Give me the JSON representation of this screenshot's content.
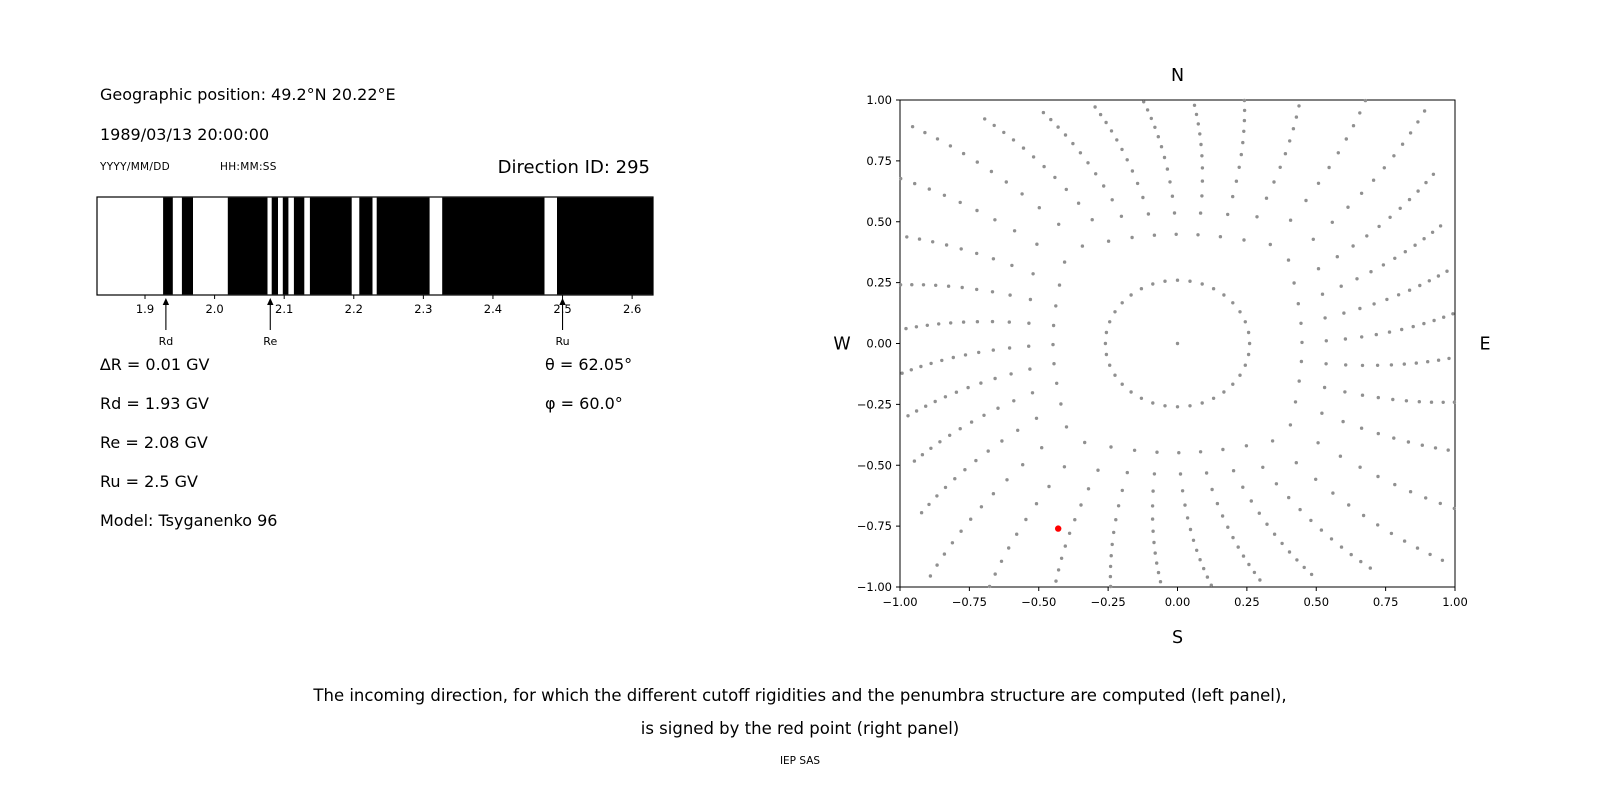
{
  "header": {
    "geo_position": "Geographic position: 49.2°N 20.22°E",
    "datetime": "1989/03/13 20:00:00",
    "date_format": "YYYY/MM/DD",
    "time_format": "HH:MM:SS",
    "direction_id": "Direction ID: 295"
  },
  "parameters": {
    "delta_r": "∆R = 0.01 GV",
    "rd": "Rd = 1.93 GV",
    "re": "Re = 2.08 GV",
    "ru": "Ru = 2.5 GV",
    "model": "Model: Tsyganenko 96",
    "theta": "θ = 62.05°",
    "phi": "φ = 60.0°"
  },
  "caption": {
    "line1": "The incoming direction, for which the different cutoff rigidities and the penumbra structure are computed (left panel),",
    "line2": "is signed by the red point (right panel)",
    "credit": "IEP SAS"
  },
  "chart_data": [
    {
      "type": "bar",
      "subtype": "penumbra-barcode",
      "title": "",
      "xlabel": "",
      "ylabel": "",
      "xlim": [
        1.831,
        2.63
      ],
      "x_ticks": [
        1.9,
        2.0,
        2.1,
        2.2,
        2.3,
        2.4,
        2.5,
        2.6
      ],
      "x_tick_labels": [
        "1.9",
        "2.0",
        "2.1",
        "2.2",
        "2.3",
        "2.4",
        "2.5",
        "2.6"
      ],
      "band_color": "#000000",
      "black_intervals": [
        [
          1.926,
          1.94
        ],
        [
          1.953,
          1.969
        ],
        [
          2.019,
          2.076
        ],
        [
          2.082,
          2.091
        ],
        [
          2.098,
          2.106
        ],
        [
          2.114,
          2.129
        ],
        [
          2.137,
          2.197
        ],
        [
          2.208,
          2.227
        ],
        [
          2.233,
          2.309
        ],
        [
          2.327,
          2.474
        ],
        [
          2.492,
          2.63
        ]
      ],
      "markers": [
        {
          "label": "Rd",
          "x": 1.93
        },
        {
          "label": "Re",
          "x": 2.08
        },
        {
          "label": "Ru",
          "x": 2.5
        }
      ]
    },
    {
      "type": "scatter",
      "title": "",
      "xlabel": "",
      "ylabel": "",
      "xlim": [
        -1.0,
        1.0
      ],
      "ylim": [
        -1.0,
        1.0
      ],
      "grid": false,
      "legend": false,
      "x_ticks": [
        -1.0,
        -0.75,
        -0.5,
        -0.25,
        0.0,
        0.25,
        0.5,
        0.75,
        1.0
      ],
      "x_tick_labels": [
        "−1.00",
        "−0.75",
        "−0.50",
        "−0.25",
        "0.00",
        "0.25",
        "0.50",
        "0.75",
        "1.00"
      ],
      "y_ticks": [
        -1.0,
        -0.75,
        -0.5,
        -0.25,
        0.0,
        0.25,
        0.5,
        0.75,
        1.0
      ],
      "y_tick_labels": [
        "−1.00",
        "−0.75",
        "−0.50",
        "−0.25",
        "0.00",
        "0.25",
        "0.50",
        "0.75",
        "1.00"
      ],
      "direction_labels": {
        "top": "N",
        "right": "E",
        "bottom": "S",
        "left": "W"
      },
      "dot_color": "#909090",
      "red_point": {
        "x": -0.43,
        "y": -0.76,
        "color": "#ff0000"
      },
      "dot_pattern": {
        "description": "radial spokes of small gray dots; inner ring at r about 0.26, dots denser toward outer edge, clipped at plot box",
        "n_spokes": 36,
        "start_angle_deg": 0,
        "step_deg": 10,
        "dots_per_spoke": 13,
        "r_min": 0.26,
        "box_reach": 1.0,
        "r_max_cap": 1.42,
        "density_exp": 0.55,
        "spiral_drift_deg": 7,
        "include_center_dot": true
      }
    }
  ]
}
